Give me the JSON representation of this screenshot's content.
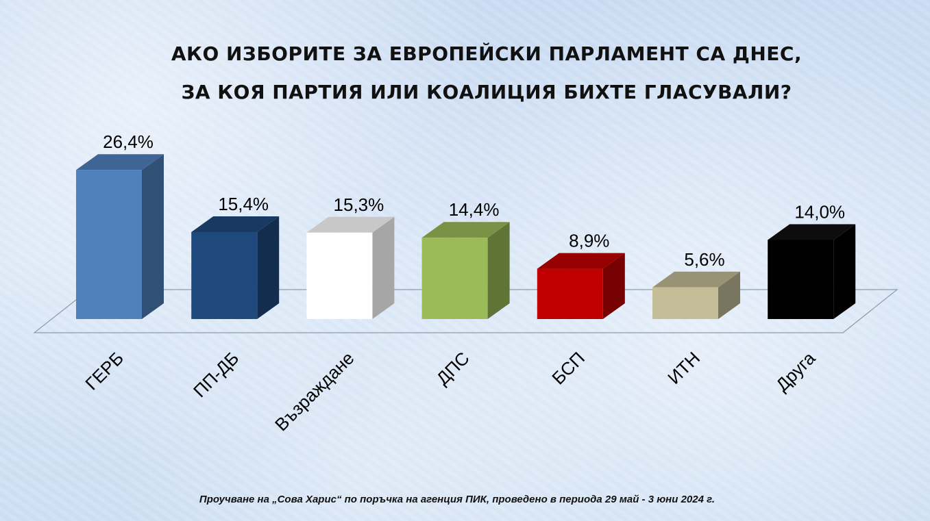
{
  "chart_data": {
    "type": "bar",
    "title_lines": [
      "АКО ИЗБОРИТЕ ЗА ЕВРОПЕЙСКИ ПАРЛАМЕНТ СА ДНЕС,",
      "ЗА КОЯ ПАРТИЯ ИЛИ КОАЛИЦИЯ БИХТЕ ГЛАСУВАЛИ?"
    ],
    "categories": [
      "ГЕРБ",
      "ПП-ДБ",
      "Възраждане",
      "ДПС",
      "БСП",
      "ИТН",
      "Друга"
    ],
    "values": [
      26.4,
      15.4,
      15.3,
      14.4,
      8.9,
      5.6,
      14.0
    ],
    "value_labels": [
      "26,4%",
      "15,4%",
      "15,3%",
      "14,4%",
      "8,9%",
      "5,6%",
      "14,0%"
    ],
    "colors": [
      "#4f81bd",
      "#1f497d",
      "#ffffff",
      "#9bbb59",
      "#c00000",
      "#c4bd97",
      "#000000"
    ],
    "unit": "%",
    "grid": false,
    "legend": "none",
    "footnote": "Проучване на „Сова Харис“ по поръчка на агенция ПИК, проведено в периода 29 май - 3 юни 2024 г."
  }
}
